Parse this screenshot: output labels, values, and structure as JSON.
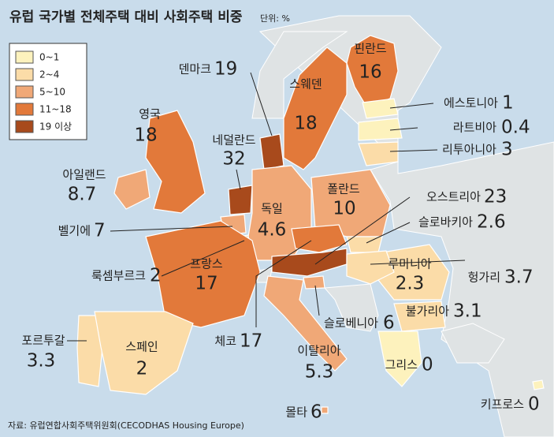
{
  "header": {
    "title": "유럽 국가별 전체주택 대비 사회주택 비중",
    "unit": "단위: %"
  },
  "legend": [
    {
      "label": "0~1",
      "color": "#fdf2bd"
    },
    {
      "label": "2~4",
      "color": "#fbdca8"
    },
    {
      "label": "5~10",
      "color": "#f0a877"
    },
    {
      "label": "11~18",
      "color": "#e2793a"
    },
    {
      "label": "19 이상",
      "color": "#a84a1c"
    }
  ],
  "countries": [
    {
      "name": "핀란드",
      "value": 16,
      "color": "#e2793a"
    },
    {
      "name": "덴마크",
      "value": 19,
      "color": "#a84a1c"
    },
    {
      "name": "스웨덴",
      "value": 18,
      "color": "#e2793a"
    },
    {
      "name": "에스토니아",
      "value": 1,
      "color": "#fdf2bd"
    },
    {
      "name": "라트비아",
      "value": 0.4,
      "color": "#fdf2bd"
    },
    {
      "name": "리투아니아",
      "value": 3,
      "color": "#fbdca8"
    },
    {
      "name": "영국",
      "value": 18,
      "color": "#e2793a"
    },
    {
      "name": "네덜란드",
      "value": 32,
      "color": "#a84a1c"
    },
    {
      "name": "아일랜드",
      "value": 8.7,
      "color": "#f0a877"
    },
    {
      "name": "폴란드",
      "value": 10,
      "color": "#f0a877"
    },
    {
      "name": "독일",
      "value": 4.6,
      "color": "#f0a877"
    },
    {
      "name": "오스트리아",
      "value": 23,
      "color": "#a84a1c"
    },
    {
      "name": "벨기에",
      "value": 7,
      "color": "#f0a877"
    },
    {
      "name": "슬로바키아",
      "value": 2.6,
      "color": "#fbdca8"
    },
    {
      "name": "룩셈부르크",
      "value": 2,
      "color": "#fbdca8"
    },
    {
      "name": "프랑스",
      "value": 17,
      "color": "#e2793a"
    },
    {
      "name": "루마니아",
      "value": 2.3,
      "color": "#fbdca8"
    },
    {
      "name": "헝가리",
      "value": 3.7,
      "color": "#fbdca8"
    },
    {
      "name": "불가리아",
      "value": 3.1,
      "color": "#fbdca8"
    },
    {
      "name": "포르투갈",
      "value": 3.3,
      "color": "#fbdca8"
    },
    {
      "name": "스페인",
      "value": 2,
      "color": "#fbdca8"
    },
    {
      "name": "체코",
      "value": 17,
      "color": "#e2793a"
    },
    {
      "name": "슬로베니아",
      "value": 6,
      "color": "#f0a877"
    },
    {
      "name": "이탈리아",
      "value": 5.3,
      "color": "#f0a877"
    },
    {
      "name": "그리스",
      "value": 0,
      "color": "#fdf2bd"
    },
    {
      "name": "몰타",
      "value": 6,
      "color": "#f0a877"
    },
    {
      "name": "키프로스",
      "value": 0,
      "color": "#fdf2bd"
    }
  ],
  "source": "자료: 유럽연합사회주택위원회(CECODHAS Housing Europe)"
}
